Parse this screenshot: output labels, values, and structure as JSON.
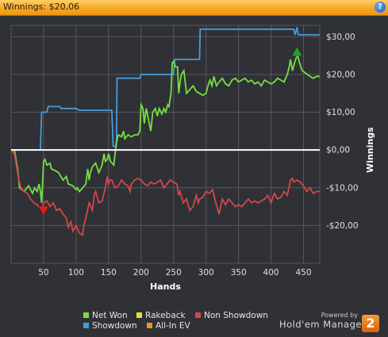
{
  "window": {
    "title": "Winnings: $20,06"
  },
  "colors": {
    "net_won": "#77dd44",
    "showdown": "#4a9ad8",
    "non_showdown": "#d04848",
    "rakeback": "#e8dc3a",
    "all_in_ev": "#f0902a",
    "zero_line": "#ffffff",
    "grid": "#55585e",
    "plot_bg": "#2f3136",
    "max_marker": "#2c9e2c",
    "min_marker": "#e01f1f"
  },
  "chart_data": {
    "type": "line",
    "xlabel": "Hands",
    "ylabel": "Winnings",
    "xlim": [
      0,
      475
    ],
    "ylim": [
      -30,
      33
    ],
    "xticks": [
      50,
      100,
      150,
      200,
      250,
      300,
      350,
      400,
      450
    ],
    "yticks": [
      -20,
      -10,
      0,
      10,
      20,
      30
    ],
    "ytick_labels": [
      "-$20,00",
      "-$10,00",
      "$0,00",
      "$10,00",
      "$20,00",
      "$30,00"
    ],
    "grid": true,
    "y_axis_position": "right",
    "legend_position": "bottom",
    "series": [
      {
        "name": "Showdown",
        "key": "showdown",
        "x": [
          0,
          45,
          47,
          55,
          57,
          75,
          77,
          100,
          105,
          155,
          157,
          162,
          163,
          198,
          200,
          250,
          252,
          290,
          291,
          435,
          437,
          440,
          442,
          475
        ],
        "y": [
          0,
          0,
          10,
          10,
          11.5,
          11.5,
          11,
          11,
          10.5,
          10.5,
          1,
          1,
          19,
          19,
          20,
          20,
          24,
          24,
          32,
          32,
          30.5,
          32.5,
          30.5,
          30.5
        ]
      },
      {
        "name": "Net Won",
        "key": "net_won",
        "x": [
          0,
          5,
          10,
          13,
          20,
          27,
          33,
          36,
          40,
          43,
          45,
          47,
          50,
          52,
          55,
          60,
          62,
          68,
          73,
          80,
          85,
          88,
          95,
          100,
          102,
          105,
          108,
          115,
          118,
          120,
          122,
          125,
          130,
          135,
          140,
          143,
          145,
          148,
          150,
          153,
          158,
          162,
          165,
          170,
          173,
          175,
          180,
          185,
          190,
          195,
          198,
          200,
          203,
          205,
          208,
          215,
          218,
          222,
          225,
          228,
          232,
          235,
          238,
          241,
          243,
          246,
          248,
          250,
          253,
          256,
          258,
          260,
          262,
          266,
          270,
          275,
          280,
          285,
          290,
          295,
          300,
          303,
          306,
          309,
          312,
          316,
          320,
          325,
          330,
          335,
          340,
          345,
          350,
          355,
          360,
          365,
          370,
          375,
          380,
          385,
          390,
          395,
          400,
          405,
          410,
          415,
          420,
          425,
          428,
          430,
          433,
          436,
          439,
          441,
          444,
          448,
          452,
          456,
          460,
          465,
          470,
          475
        ],
        "y": [
          0,
          0,
          -5,
          -10,
          -11,
          -9.5,
          -11.5,
          -10,
          -11,
          -9,
          -11,
          -14,
          -3,
          -2.5,
          -4,
          -3.5,
          -5,
          -5.5,
          -6,
          -8,
          -7,
          -9,
          -9.5,
          -10.5,
          -10,
          -11,
          -10.5,
          -9,
          -5,
          -8,
          -6,
          -4.5,
          -3.5,
          -6,
          -4,
          -1,
          -3,
          -2.5,
          -1,
          -3,
          -4,
          2,
          4,
          3.5,
          5,
          3,
          4,
          3.5,
          4,
          4,
          5,
          12,
          11,
          7,
          11,
          5,
          10,
          11,
          9,
          11,
          9.5,
          11,
          10,
          12,
          11.5,
          15,
          23,
          23.5,
          22,
          22,
          15,
          18,
          20,
          21,
          15,
          16,
          17,
          15.5,
          15,
          14.5,
          15,
          17,
          18.5,
          17,
          19.5,
          17,
          18,
          19,
          17.5,
          17,
          18.5,
          19,
          18,
          18.5,
          19,
          18,
          18.5,
          17.5,
          18,
          17,
          18.5,
          18,
          17.5,
          18,
          19,
          18.5,
          18,
          20,
          22,
          24,
          21,
          23,
          24.5,
          25,
          23,
          21,
          20.5,
          20,
          19.5,
          19,
          19.5,
          19.5
        ]
      },
      {
        "name": "Non Showdown",
        "key": "non_showdown",
        "x": [
          0,
          5,
          8,
          12,
          15,
          20,
          25,
          30,
          35,
          40,
          45,
          48,
          50,
          55,
          60,
          65,
          70,
          75,
          80,
          85,
          88,
          92,
          95,
          100,
          105,
          110,
          112,
          115,
          120,
          125,
          128,
          130,
          135,
          140,
          145,
          148,
          150,
          152,
          155,
          160,
          165,
          170,
          175,
          180,
          183,
          185,
          190,
          195,
          200,
          205,
          210,
          215,
          220,
          225,
          230,
          235,
          240,
          245,
          250,
          255,
          258,
          260,
          265,
          270,
          275,
          280,
          285,
          288,
          290,
          295,
          300,
          305,
          310,
          315,
          320,
          325,
          330,
          335,
          340,
          345,
          350,
          355,
          360,
          365,
          370,
          375,
          380,
          385,
          390,
          395,
          400,
          405,
          410,
          415,
          420,
          425,
          430,
          433,
          435,
          440,
          445,
          450,
          455,
          460,
          465,
          470,
          475
        ],
        "y": [
          0,
          -1,
          -4,
          -8,
          -10,
          -11,
          -11.5,
          -13,
          -14,
          -14.5,
          -15.5,
          -15.5,
          -14,
          -13.5,
          -15,
          -14,
          -16,
          -15.5,
          -17,
          -18,
          -20.5,
          -19,
          -21.5,
          -20,
          -22,
          -22.5,
          -20,
          -18,
          -14,
          -16,
          -12,
          -11,
          -14,
          -13.5,
          -10,
          -7,
          -9,
          -8,
          -8,
          -10,
          -9.5,
          -8,
          -9,
          -9.5,
          -11,
          -9,
          -8,
          -7.5,
          -8,
          -9,
          -9.5,
          -8.5,
          -9,
          -8.5,
          -8,
          -10,
          -9,
          -8,
          -8.5,
          -9,
          -12,
          -11,
          -14,
          -13,
          -16,
          -15,
          -12,
          -14,
          -13,
          -12.5,
          -11,
          -11.5,
          -10.5,
          -14,
          -17,
          -13,
          -14.5,
          -13,
          -14,
          -15,
          -14.5,
          -15,
          -14,
          -13,
          -14,
          -13.5,
          -14,
          -13.5,
          -13,
          -12,
          -14,
          -11.5,
          -13,
          -12.5,
          -11,
          -12,
          -8,
          -7.5,
          -8.5,
          -8,
          -8.5,
          -9.5,
          -11,
          -10,
          -11.5,
          -11,
          -11
        ]
      }
    ],
    "markers": [
      {
        "type": "max",
        "series": "net_won",
        "x": 440,
        "y": 26
      },
      {
        "type": "min",
        "series": "net_won",
        "x": 50,
        "y": -16
      }
    ],
    "legend": [
      {
        "label": "Net Won",
        "key": "net_won"
      },
      {
        "label": "Rakeback",
        "key": "rakeback"
      },
      {
        "label": "Non Showdown",
        "key": "non_showdown"
      },
      {
        "label": "Showdown",
        "key": "showdown"
      },
      {
        "label": "All-In EV",
        "key": "all_in_ev"
      }
    ]
  },
  "branding": {
    "powered_by": "Powered by",
    "product": "Hold'em Manager",
    "logo_glyph": "2"
  }
}
